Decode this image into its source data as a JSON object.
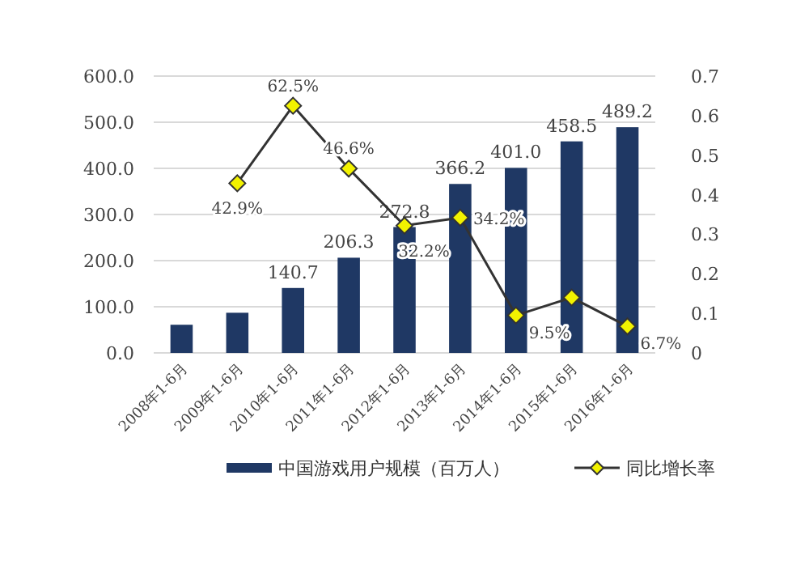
{
  "chart_data": {
    "type": "bar",
    "categories": [
      "2008年1-6月",
      "2009年1-6月",
      "2010年1-6月",
      "2011年1-6月",
      "2012年1-6月",
      "2013年1-6月",
      "2014年1-6月",
      "2015年1-6月",
      "2016年1-6月"
    ],
    "series": [
      {
        "name": "中国游戏用户规模（百万人）",
        "type": "bar",
        "color": "#1f3864",
        "values": [
          61,
          87,
          140.7,
          206.3,
          272.8,
          366.2,
          401.0,
          458.5,
          489.2
        ],
        "value_labels": [
          null,
          null,
          "140.7",
          "206.3",
          "272.8",
          "366.2",
          "401.0",
          "458.5",
          "489.2"
        ]
      },
      {
        "name": "同比增长率",
        "type": "line",
        "axis": "y2",
        "color": "#333333",
        "marker": "diamond",
        "values": [
          null,
          0.429,
          0.625,
          0.466,
          0.322,
          0.342,
          0.095,
          0.14,
          0.067
        ],
        "value_labels": [
          null,
          "42.9%",
          "62.5%",
          "46.6%",
          "32.2%",
          "34.2%",
          "9.5%",
          null,
          "6.7%"
        ]
      }
    ],
    "ylim": [
      0,
      600
    ],
    "yticks": [
      {
        "value": 0,
        "label": "0.0"
      },
      {
        "value": 100,
        "label": "100.0"
      },
      {
        "value": 200,
        "label": "200.0"
      },
      {
        "value": 300,
        "label": "300.0"
      },
      {
        "value": 400,
        "label": "400.0"
      },
      {
        "value": 500,
        "label": "500.0"
      },
      {
        "value": 600,
        "label": "600.0"
      }
    ],
    "y2lim": [
      0,
      0.7
    ],
    "y2ticks": [
      0,
      0.1,
      0.2,
      0.3,
      0.4,
      0.5,
      0.6,
      0.7
    ],
    "grid": "y",
    "legend": "bottom"
  }
}
